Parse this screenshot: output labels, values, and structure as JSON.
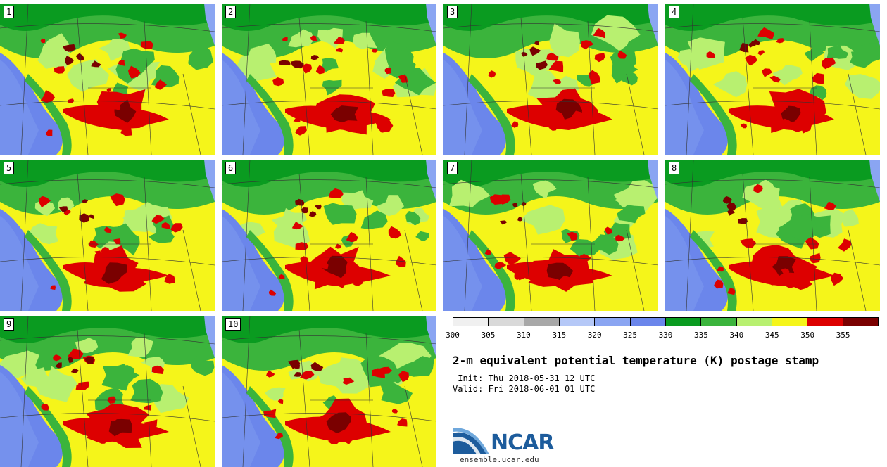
{
  "colors": {
    "c300": "#f0f0f0",
    "c305": "#d9d9d9",
    "c310": "#a8a8a8",
    "c315": "#b5c8f7",
    "c320": "#8aa5f2",
    "c325": "#6b86eb",
    "c330": "#0a9b20",
    "c335": "#3bb43c",
    "c340": "#b8f070",
    "c345": "#f5f51a",
    "c350": "#dd0000",
    "c355": "#7a0000"
  },
  "members": [
    "1",
    "2",
    "3",
    "4",
    "5",
    "6",
    "7",
    "8",
    "9",
    "10"
  ],
  "colorbar": {
    "colors": [
      "#f0f0f0",
      "#d9d9d9",
      "#a8a8a8",
      "#b5c8f7",
      "#8aa5f2",
      "#6b86eb",
      "#0a9b20",
      "#3bb43c",
      "#b8f070",
      "#f5f51a",
      "#dd0000",
      "#7a0000"
    ],
    "ticks": [
      "300",
      "305",
      "310",
      "315",
      "320",
      "325",
      "330",
      "335",
      "340",
      "345",
      "350",
      "355"
    ]
  },
  "title": "2-m equivalent potential temperature (K) postage stamp",
  "init": " Init: Thu 2018-05-31 12 UTC",
  "valid": "Valid: Fri 2018-06-01 01 UTC",
  "logo": {
    "name": "NCAR",
    "url": "ensemble.ucar.edu"
  }
}
